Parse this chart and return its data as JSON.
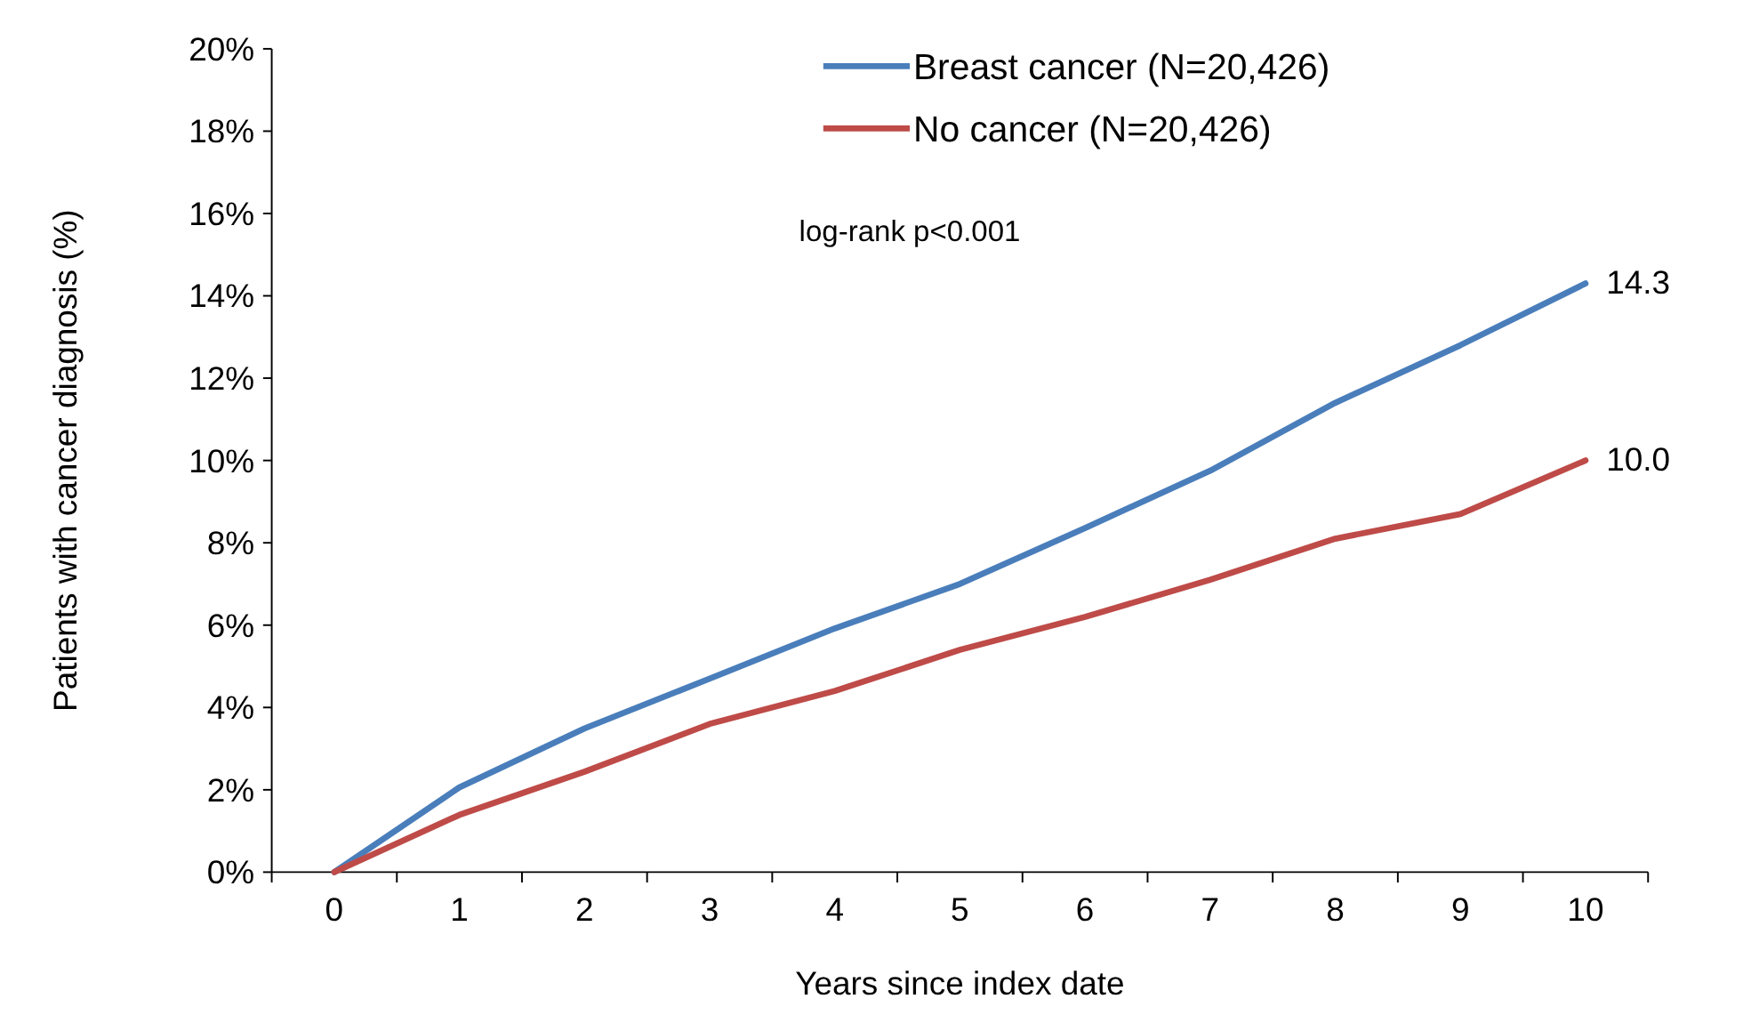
{
  "chart_data": {
    "type": "line",
    "xlabel": "Years since index date",
    "ylabel": "Patients with cancer diagnosis (%)",
    "categories": [
      "0",
      "1",
      "2",
      "3",
      "4",
      "5",
      "6",
      "7",
      "8",
      "9",
      "10"
    ],
    "series": [
      {
        "name": "Breast cancer (N=20,426)",
        "color": "#4a7ebb",
        "values": [
          0,
          2.06,
          3.49,
          4.7,
          5.92,
          7.0,
          8.36,
          9.75,
          11.4,
          12.8,
          14.3
        ],
        "value_labels": [
          null,
          null,
          null,
          null,
          null,
          null,
          null,
          null,
          null,
          null,
          "14.3"
        ]
      },
      {
        "name": "No cancer (N=20,426)",
        "color": "#be4b48",
        "values": [
          0,
          1.39,
          2.44,
          3.6,
          4.4,
          5.4,
          6.2,
          7.1,
          8.1,
          8.7,
          10.0
        ],
        "value_labels": [
          null,
          null,
          null,
          null,
          null,
          null,
          null,
          null,
          null,
          null,
          "10.0"
        ]
      }
    ],
    "ylim": [
      0,
      20
    ],
    "yticks": [
      {
        "value": 0,
        "label": "0%"
      },
      {
        "value": 2,
        "label": "2%"
      },
      {
        "value": 4,
        "label": "4%"
      },
      {
        "value": 6,
        "label": "6%"
      },
      {
        "value": 8,
        "label": "8%"
      },
      {
        "value": 10,
        "label": "10%"
      },
      {
        "value": 12,
        "label": "12%"
      },
      {
        "value": 14,
        "label": "14%"
      },
      {
        "value": 16,
        "label": "16%"
      },
      {
        "value": 18,
        "label": "18%"
      },
      {
        "value": 20,
        "label": "20%"
      }
    ],
    "annotations": [
      "log-rank p<0.001"
    ],
    "legend": "top",
    "grid": false,
    "marker": "none",
    "line_style": "solid"
  }
}
